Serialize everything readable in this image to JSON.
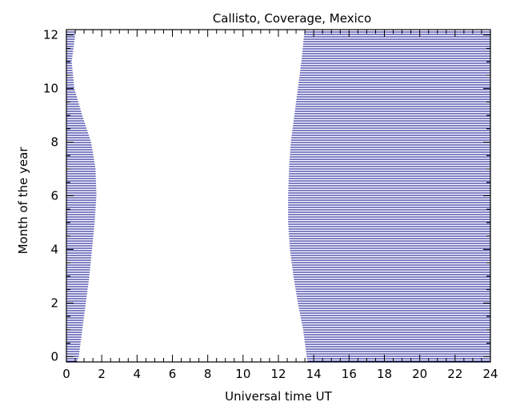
{
  "chart_data": {
    "type": "area",
    "title": "Callisto, Coverage, Mexico",
    "xlabel": "Universal time UT",
    "ylabel": "Month of the year",
    "xlim": [
      0,
      24
    ],
    "ylim": [
      -0.2,
      12.2
    ],
    "x_ticks": [
      0,
      2,
      4,
      6,
      8,
      10,
      12,
      14,
      16,
      18,
      20,
      22,
      24
    ],
    "y_ticks": [
      0,
      2,
      4,
      6,
      8,
      10,
      12
    ],
    "x_minor_step": 0.5,
    "y_minor_step": 0.5,
    "grid": false,
    "fill_color": "#00008b",
    "fill_style": "horizontal hatch lines",
    "series": [
      {
        "region": "left-covered",
        "x_from": 0,
        "boundary": [
          [
            0.6,
            -0.2
          ],
          [
            0.7,
            0
          ],
          [
            0.9,
            1
          ],
          [
            1.1,
            2
          ],
          [
            1.3,
            3
          ],
          [
            1.45,
            4
          ],
          [
            1.6,
            5
          ],
          [
            1.7,
            6
          ],
          [
            1.65,
            7
          ],
          [
            1.4,
            8
          ],
          [
            0.9,
            9
          ],
          [
            0.45,
            10
          ],
          [
            0.3,
            11
          ],
          [
            0.5,
            12
          ],
          [
            0.55,
            12.2
          ]
        ]
      },
      {
        "region": "right-covered",
        "x_to": 24,
        "boundary": [
          [
            13.65,
            -0.2
          ],
          [
            13.6,
            0
          ],
          [
            13.4,
            1
          ],
          [
            13.1,
            2
          ],
          [
            12.85,
            3
          ],
          [
            12.65,
            4
          ],
          [
            12.55,
            5
          ],
          [
            12.55,
            6
          ],
          [
            12.6,
            7
          ],
          [
            12.7,
            8
          ],
          [
            12.9,
            9
          ],
          [
            13.1,
            10
          ],
          [
            13.3,
            11
          ],
          [
            13.45,
            12
          ],
          [
            13.5,
            12.2
          ]
        ]
      }
    ]
  }
}
